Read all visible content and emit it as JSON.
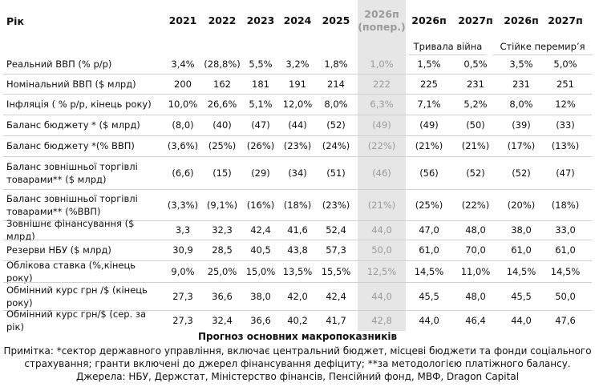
{
  "table": {
    "header": [
      "Рік",
      "2021",
      "2022",
      "2023",
      "2024",
      "2025",
      "2026п (попер.)",
      "2026п",
      "2027п",
      "2026п",
      "2027п"
    ],
    "groups": [
      "Тривала війна",
      "Стійке перемир’я"
    ],
    "rows": [
      [
        "Реальний ВВП (% р/р)",
        "3,4%",
        "(28,8%)",
        "5,5%",
        "3,2%",
        "1,8%",
        "1,0%",
        "1,5%",
        "0,5%",
        "3,5%",
        "5,0%"
      ],
      [
        "Номінальний ВВП ($ млрд)",
        "200",
        "162",
        "181",
        "191",
        "214",
        "222",
        "225",
        "231",
        "231",
        "251"
      ],
      [
        "Інфляція ( % р/р, кінець року)",
        "10,0%",
        "26,6%",
        "5,1%",
        "12,0%",
        "8,0%",
        "6,3%",
        "7,1%",
        "5,2%",
        "8,0%",
        "12%"
      ],
      [
        "Баланс бюджету * ($ млрд)",
        "(8,0)",
        "(40)",
        "(47)",
        "(44)",
        "(52)",
        "(49)",
        "(49)",
        "(50)",
        "(39)",
        "(33)"
      ],
      [
        "Баланс бюджету *(% ВВП)",
        "(3,6%)",
        "(25%)",
        "(26%)",
        "(23%)",
        "(24%)",
        "(22%)",
        "(21%)",
        "(21%)",
        "(17%)",
        "(13%)"
      ],
      [
        "Баланс зовнішньої торгівлі товарами** ($ млрд)",
        "(6,6)",
        "(15)",
        "(29)",
        "(34)",
        "(51)",
        "(46)",
        "(56)",
        "(52)",
        "(52)",
        "(47)"
      ],
      [
        "Баланс зовнішньої торгівлі товарами** (%ВВП)",
        "(3,3%)",
        "(9,1%)",
        "(16%)",
        "(18%)",
        "(23%)",
        "(21%)",
        "(25%)",
        "(22%)",
        "(20%)",
        "(18%)"
      ],
      [
        "Зовнішнє фінансування ($ млрд)",
        "3,3",
        "32,3",
        "42,4",
        "41,6",
        "52,4",
        "44,0",
        "47,0",
        "48,0",
        "38,0",
        "33,0"
      ],
      [
        "Резерви НБУ ($ млрд)",
        "30,9",
        "28,5",
        "40,5",
        "43,8",
        "57,3",
        "50,0",
        "61,0",
        "70,0",
        "61,0",
        "61,0"
      ],
      [
        "Облікова ставка (%,кінець року)",
        "9,0%",
        "25,0%",
        "15,0%",
        "13,5%",
        "15,5%",
        "12,5%",
        "14,5%",
        "11,0%",
        "14,5%",
        "14,5%"
      ],
      [
        "Обмінний курс грн /$ (кінець року)",
        "27,3",
        "36,6",
        "38,0",
        "42,0",
        "42,4",
        "44,0",
        "45,5",
        "48,0",
        "45,5",
        "50,0"
      ],
      [
        "Обмінний курс грн/$  (сер. за рік)",
        "27,3",
        "32,4",
        "36,6",
        "40,2",
        "41,7",
        "42,8",
        "44,0",
        "46,4",
        "44,0",
        "47,6"
      ]
    ]
  },
  "caption": "Прогноз основних макропоказників",
  "note": "Примітка: *сектор державного управління, включає центральний бюджет, місцеві бюджети та фонди соціального страхування; гранти включені до джерел фінансування дефіциту; **за методологією платіжного балансу. Джерела: НБУ, Держстат, Міністерство фінансів, Пенсійний фонд, МВФ, Dragon Capital"
}
